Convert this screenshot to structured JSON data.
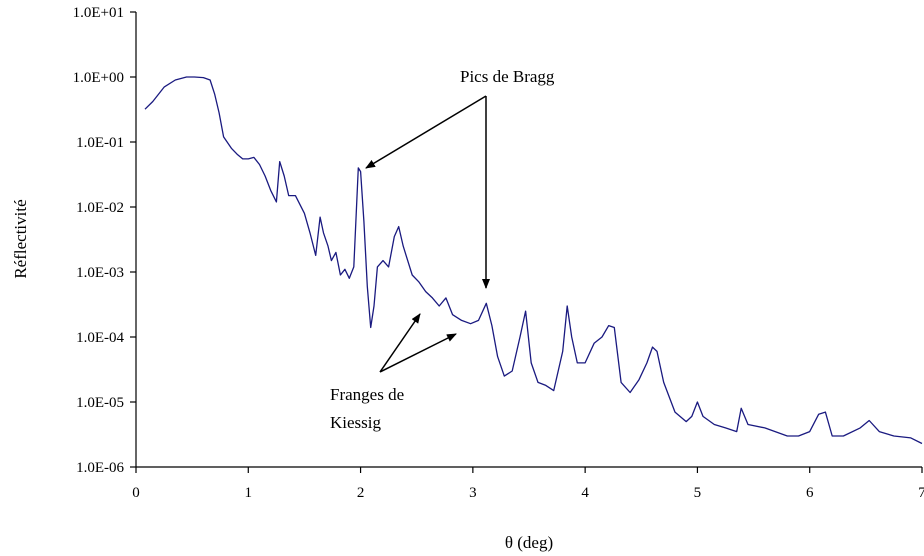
{
  "chart_data": {
    "type": "line",
    "title": "",
    "xlabel": "θ (deg)",
    "ylabel": "Réflectivité",
    "xlim": [
      0,
      7
    ],
    "ylim": [
      1e-06,
      10
    ],
    "y_scale": "log",
    "grid": false,
    "x_ticks": [
      0,
      1,
      2,
      3,
      4,
      5,
      6,
      7
    ],
    "x_tick_labels": [
      "0",
      "1",
      "2",
      "3",
      "4",
      "5",
      "6",
      "7"
    ],
    "y_ticks": [
      10,
      1,
      0.1,
      0.01,
      0.001,
      0.0001,
      1e-05,
      1e-06
    ],
    "y_tick_labels": [
      "1.0E+01",
      "1.0E+00",
      "1.0E-01",
      "1.0E-02",
      "1.0E-03",
      "1.0E-04",
      "1.0E-05",
      "1.0E-06"
    ],
    "line_color": "#1a1a80",
    "series": [
      {
        "x": [
          0.08,
          0.15,
          0.25,
          0.35,
          0.45,
          0.52,
          0.6,
          0.66,
          0.7,
          0.74,
          0.78,
          0.85,
          0.9,
          0.95,
          1.0,
          1.05,
          1.1,
          1.15,
          1.2,
          1.25,
          1.28,
          1.32,
          1.36,
          1.42,
          1.5,
          1.55,
          1.6,
          1.64,
          1.67,
          1.71,
          1.74,
          1.78,
          1.82,
          1.86,
          1.9,
          1.94,
          1.98,
          2.0,
          2.03,
          2.06,
          2.09,
          2.12,
          2.15,
          2.2,
          2.25,
          2.3,
          2.34,
          2.38,
          2.42,
          2.46,
          2.52,
          2.58,
          2.64,
          2.7,
          2.76,
          2.82,
          2.9,
          2.98,
          3.05,
          3.12,
          3.17,
          3.22,
          3.28,
          3.35,
          3.42,
          3.47,
          3.52,
          3.58,
          3.65,
          3.72,
          3.8,
          3.84,
          3.88,
          3.93,
          4.0,
          4.08,
          4.15,
          4.21,
          4.26,
          4.32,
          4.4,
          4.48,
          4.55,
          4.6,
          4.64,
          4.7,
          4.8,
          4.9,
          4.95,
          5.0,
          5.05,
          5.15,
          5.25,
          5.35,
          5.39,
          5.45,
          5.6,
          5.8,
          5.9,
          6.0,
          6.08,
          6.14,
          6.2,
          6.3,
          6.45,
          6.53,
          6.62,
          6.75,
          6.9,
          7.0
        ],
        "y": [
          0.32,
          0.42,
          0.7,
          0.9,
          1.0,
          1.0,
          0.98,
          0.9,
          0.55,
          0.28,
          0.12,
          0.08,
          0.065,
          0.055,
          0.055,
          0.058,
          0.045,
          0.03,
          0.018,
          0.012,
          0.05,
          0.03,
          0.015,
          0.015,
          0.008,
          0.004,
          0.0018,
          0.007,
          0.004,
          0.0025,
          0.0015,
          0.002,
          0.0009,
          0.0011,
          0.0008,
          0.0012,
          0.04,
          0.035,
          0.006,
          0.0006,
          0.00014,
          0.0003,
          0.0012,
          0.0015,
          0.0012,
          0.0035,
          0.005,
          0.0025,
          0.0015,
          0.0009,
          0.0007,
          0.0005,
          0.0004,
          0.0003,
          0.0004,
          0.00022,
          0.00018,
          0.00016,
          0.00018,
          0.00033,
          0.00015,
          5e-05,
          2.5e-05,
          3e-05,
          0.0001,
          0.00025,
          4e-05,
          2e-05,
          1.8e-05,
          1.5e-05,
          6e-05,
          0.0003,
          0.0001,
          4e-05,
          4e-05,
          8e-05,
          0.0001,
          0.00015,
          0.00014,
          2e-05,
          1.4e-05,
          2.2e-05,
          4e-05,
          7e-05,
          6e-05,
          2e-05,
          7e-06,
          5e-06,
          6e-06,
          1e-05,
          6e-06,
          4.5e-06,
          4e-06,
          3.5e-06,
          8e-06,
          4.5e-06,
          4e-06,
          3e-06,
          3e-06,
          3.5e-06,
          6.5e-06,
          7e-06,
          3e-06,
          3e-06,
          4e-06,
          5.2e-06,
          3.5e-06,
          3e-06,
          2.8e-06,
          2.3e-06
        ]
      }
    ],
    "annotations": [
      {
        "text": "Pics de Bragg"
      },
      {
        "text": "Franges de"
      },
      {
        "text": "Kiessig"
      }
    ]
  }
}
